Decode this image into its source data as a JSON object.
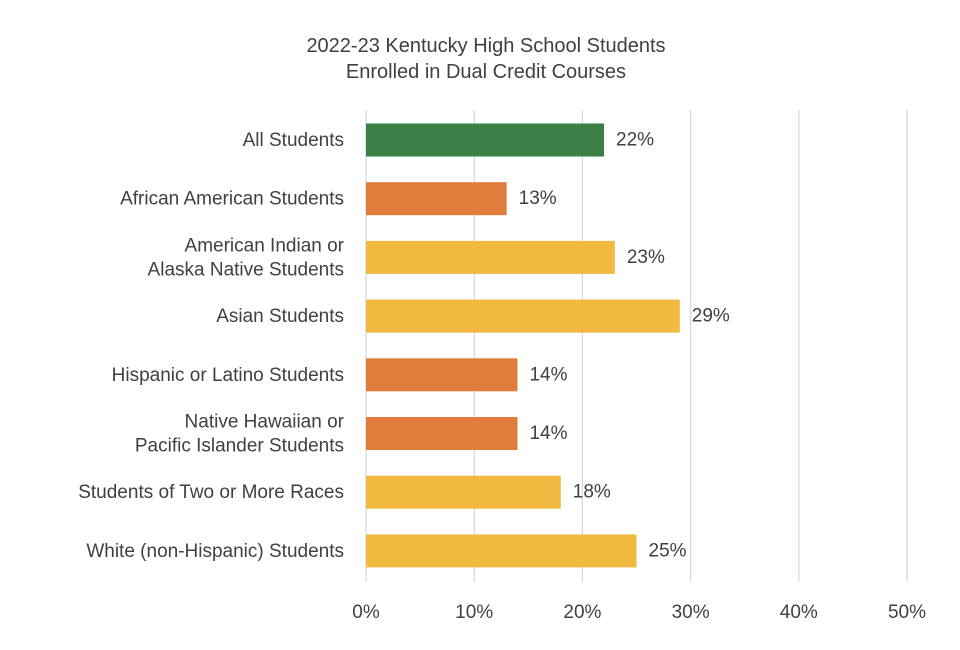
{
  "chart_data": {
    "type": "bar",
    "orientation": "horizontal",
    "title": "2022-23 Kentucky High School Students\nEnrolled in Dual Credit Courses",
    "categories": [
      "All Students",
      "African American Students",
      "American Indian or\nAlaska Native Students",
      "Asian Students",
      "Hispanic or Latino Students",
      "Native Hawaiian or\nPacific Islander Students",
      "Students of Two or More Races",
      "White (non-Hispanic) Students"
    ],
    "values": [
      22,
      13,
      23,
      29,
      14,
      14,
      18,
      25
    ],
    "data_labels": [
      "22%",
      "13%",
      "23%",
      "29%",
      "14%",
      "14%",
      "18%",
      "25%"
    ],
    "bar_colors": [
      "#3a7f44",
      "#e07d3c",
      "#f2b941",
      "#f2b941",
      "#e07d3c",
      "#e07d3c",
      "#f2b941",
      "#f2b941"
    ],
    "xlim": [
      0,
      50
    ],
    "xticks": [
      0,
      10,
      20,
      30,
      40,
      50
    ],
    "xtick_labels": [
      "0%",
      "10%",
      "20%",
      "30%",
      "40%",
      "50%"
    ],
    "xlabel": "",
    "ylabel": "",
    "grid": "vertical",
    "legend": "none"
  }
}
